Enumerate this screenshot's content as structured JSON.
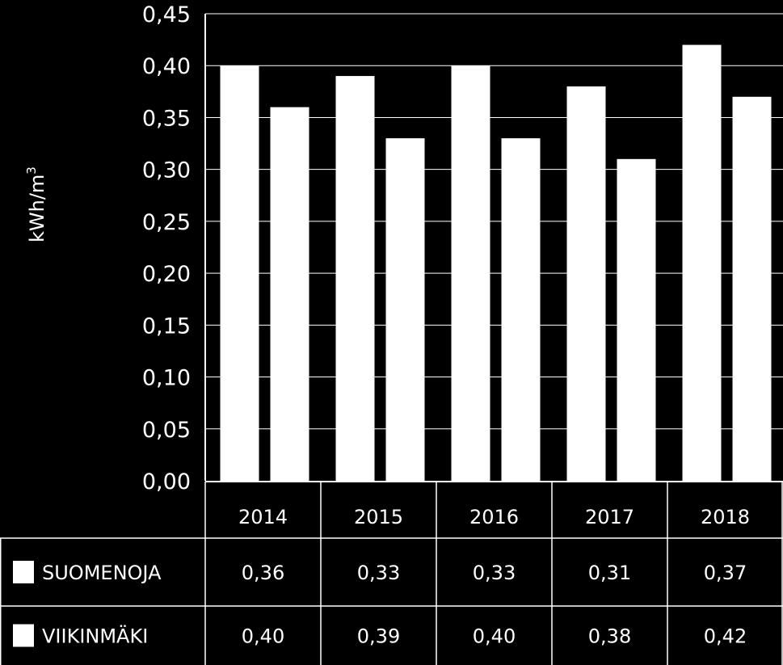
{
  "chart_data": {
    "type": "bar",
    "ylabel": "kWh/m",
    "ylabel_superscript": "3",
    "ylim": [
      0,
      0.45
    ],
    "ytick_values": [
      0,
      0.05,
      0.1,
      0.15,
      0.2,
      0.25,
      0.3,
      0.35,
      0.4,
      0.45
    ],
    "ytick_labels": [
      "0,00",
      "0,05",
      "0,10",
      "0,15",
      "0,20",
      "0,25",
      "0,30",
      "0,35",
      "0,40",
      "0,45"
    ],
    "grid": true,
    "categories": [
      "2014",
      "2015",
      "2016",
      "2017",
      "2018"
    ],
    "series": [
      {
        "name": "SUOMENOJA",
        "values": [
          0.36,
          0.33,
          0.33,
          0.31,
          0.37
        ],
        "labels": [
          "0,36",
          "0,33",
          "0,33",
          "0,31",
          "0,37"
        ]
      },
      {
        "name": "VIIKINMÄKI",
        "values": [
          0.4,
          0.39,
          0.4,
          0.38,
          0.42
        ],
        "labels": [
          "0,40",
          "0,39",
          "0,40",
          "0,38",
          "0,42"
        ]
      }
    ],
    "bar_order": [
      "VIIKINMÄKI",
      "SUOMENOJA"
    ],
    "legend": "data-table-below",
    "colors": {
      "background": "#000000",
      "bars": "#ffffff",
      "grid": "#ffffff"
    }
  }
}
